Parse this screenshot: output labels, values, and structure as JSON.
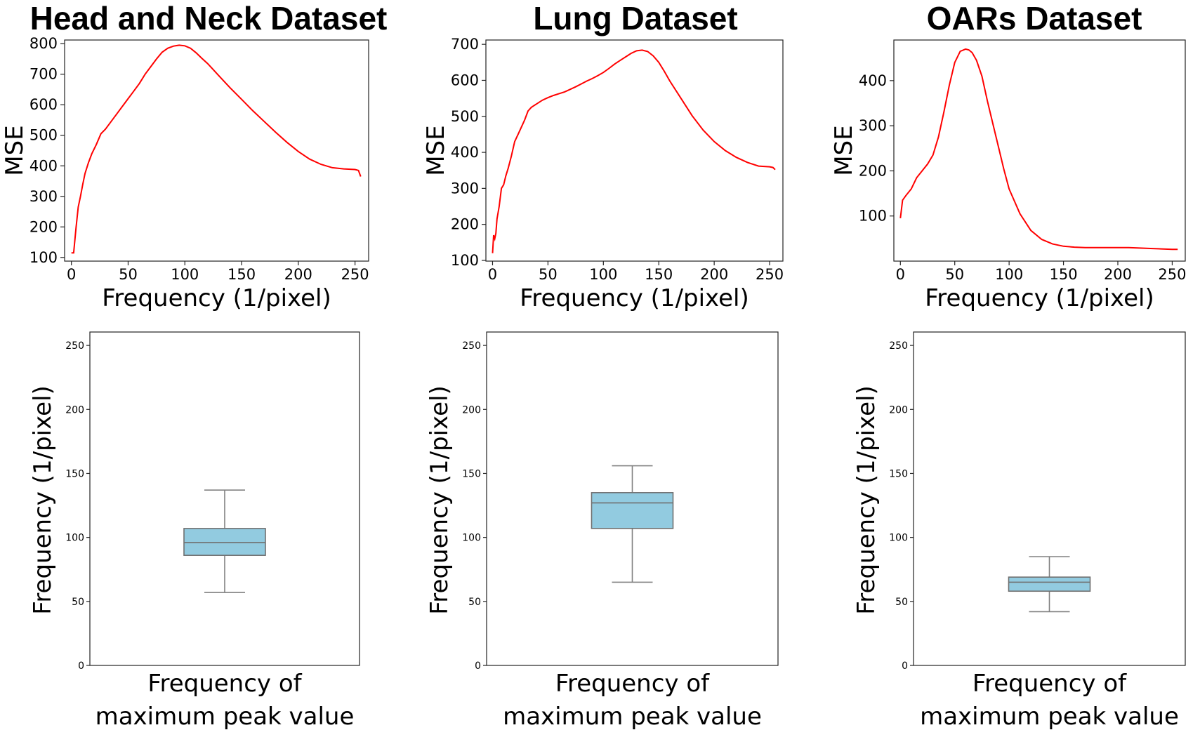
{
  "chart_data": [
    {
      "type": "line",
      "title": "Head and Neck Dataset",
      "xlabel": "Frequency (1/pixel)",
      "ylabel": "MSE",
      "xlim": [
        -6,
        262
      ],
      "ylim": [
        88,
        812
      ],
      "xticks": [
        0,
        50,
        100,
        150,
        200,
        250
      ],
      "yticks": [
        100,
        200,
        300,
        400,
        500,
        600,
        700,
        800
      ],
      "color": "#ff0000",
      "series": [
        {
          "name": "MSE",
          "x": [
            0,
            2,
            4,
            6,
            8,
            10,
            12,
            15,
            18,
            22,
            26,
            30,
            35,
            40,
            45,
            50,
            55,
            60,
            65,
            70,
            75,
            80,
            85,
            90,
            95,
            100,
            105,
            110,
            115,
            120,
            125,
            130,
            140,
            150,
            160,
            170,
            180,
            190,
            200,
            210,
            220,
            230,
            240,
            250,
            253,
            255
          ],
          "y": [
            115,
            115,
            195,
            265,
            300,
            340,
            375,
            410,
            440,
            470,
            505,
            520,
            545,
            570,
            595,
            620,
            645,
            670,
            700,
            725,
            750,
            772,
            785,
            792,
            795,
            793,
            785,
            770,
            752,
            735,
            715,
            695,
            655,
            618,
            580,
            545,
            510,
            477,
            447,
            422,
            405,
            394,
            390,
            388,
            385,
            365
          ]
        }
      ]
    },
    {
      "type": "line",
      "title": "Lung Dataset",
      "xlabel": "Frequency (1/pixel)",
      "ylabel": "MSE",
      "xlim": [
        -6,
        262
      ],
      "ylim": [
        98,
        712
      ],
      "xticks": [
        0,
        50,
        100,
        150,
        200,
        250
      ],
      "yticks": [
        100,
        200,
        300,
        400,
        500,
        600,
        700
      ],
      "color": "#ff0000",
      "series": [
        {
          "name": "MSE",
          "x": [
            0,
            1,
            2,
            3,
            4,
            6,
            8,
            10,
            12,
            14,
            17,
            20,
            23,
            26,
            29,
            32,
            35,
            40,
            45,
            50,
            55,
            60,
            65,
            70,
            75,
            80,
            85,
            90,
            95,
            100,
            105,
            110,
            115,
            120,
            125,
            130,
            135,
            140,
            145,
            150,
            155,
            160,
            170,
            180,
            190,
            200,
            210,
            220,
            230,
            240,
            250,
            253,
            255
          ],
          "y": [
            120,
            170,
            160,
            175,
            215,
            250,
            300,
            310,
            335,
            355,
            390,
            430,
            450,
            470,
            490,
            515,
            525,
            535,
            545,
            552,
            558,
            563,
            568,
            575,
            582,
            590,
            598,
            605,
            613,
            622,
            633,
            645,
            655,
            665,
            675,
            682,
            684,
            680,
            668,
            650,
            625,
            598,
            550,
            502,
            462,
            430,
            405,
            386,
            372,
            362,
            360,
            358,
            352
          ]
        }
      ]
    },
    {
      "type": "line",
      "title": "OARs Dataset",
      "xlabel": "Frequency (1/pixel)",
      "ylabel": "MSE",
      "xlim": [
        -6,
        262
      ],
      "ylim": [
        0,
        490
      ],
      "xticks": [
        0,
        50,
        100,
        150,
        200,
        250
      ],
      "yticks": [
        100,
        200,
        300,
        400
      ],
      "color": "#ff0000",
      "series": [
        {
          "name": "MSE",
          "x": [
            0,
            2,
            5,
            10,
            15,
            20,
            25,
            30,
            35,
            40,
            45,
            50,
            55,
            60,
            63,
            66,
            70,
            75,
            80,
            85,
            90,
            95,
            100,
            110,
            120,
            130,
            140,
            150,
            160,
            170,
            180,
            190,
            200,
            210,
            220,
            230,
            240,
            250,
            255
          ],
          "y": [
            95,
            135,
            145,
            160,
            185,
            200,
            215,
            235,
            275,
            330,
            390,
            440,
            465,
            470,
            468,
            462,
            445,
            410,
            355,
            305,
            255,
            205,
            160,
            105,
            68,
            48,
            38,
            33,
            31,
            30,
            30,
            30,
            30,
            30,
            29,
            28,
            27,
            26,
            26
          ]
        }
      ]
    },
    {
      "type": "box",
      "xlabel_lines": [
        "Frequency of",
        "maximum peak value"
      ],
      "ylabel": "Frequency (1/pixel)",
      "ylim": [
        0,
        255
      ],
      "yticks": [
        0,
        50,
        100,
        150,
        200,
        250
      ],
      "color": "#92cbe0",
      "box": {
        "whisker_low": 57,
        "q1": 86,
        "median": 96,
        "q3": 107,
        "whisker_high": 137
      }
    },
    {
      "type": "box",
      "xlabel_lines": [
        "Frequency of",
        "maximum peak value"
      ],
      "ylabel": "Frequency (1/pixel)",
      "ylim": [
        0,
        255
      ],
      "yticks": [
        0,
        50,
        100,
        150,
        200,
        250
      ],
      "color": "#92cbe0",
      "box": {
        "whisker_low": 65,
        "q1": 107,
        "median": 127,
        "q3": 135,
        "whisker_high": 156
      }
    },
    {
      "type": "box",
      "xlabel_lines": [
        "Frequency of",
        "maximum peak value"
      ],
      "ylabel": "Frequency (1/pixel)",
      "ylim": [
        0,
        255
      ],
      "yticks": [
        0,
        50,
        100,
        150,
        200,
        250
      ],
      "color": "#92cbe0",
      "box": {
        "whisker_low": 42,
        "q1": 58,
        "median": 65,
        "q3": 69,
        "whisker_high": 85
      }
    }
  ]
}
